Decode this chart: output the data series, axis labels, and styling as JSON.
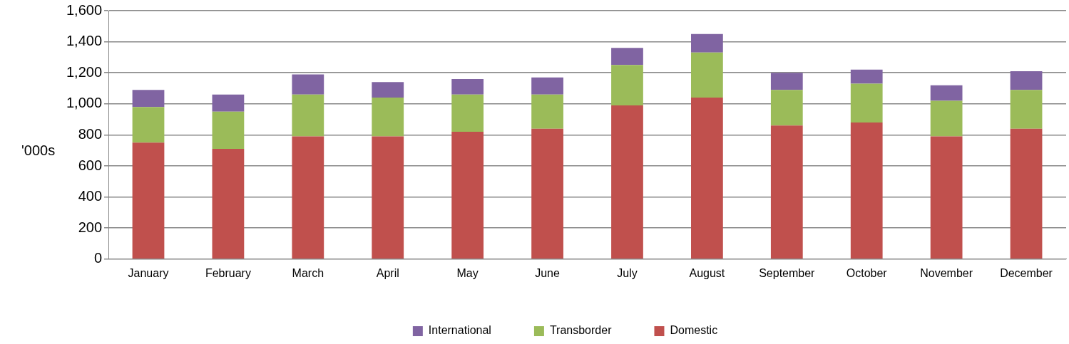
{
  "chart_data": {
    "type": "bar",
    "stacked": true,
    "ylabel": "'000s",
    "categories": [
      "January",
      "February",
      "March",
      "April",
      "May",
      "June",
      "July",
      "August",
      "September",
      "October",
      "November",
      "December"
    ],
    "series": [
      {
        "name": "Domestic",
        "color": "#c0504d",
        "values": [
          750,
          710,
          790,
          790,
          820,
          840,
          990,
          1040,
          860,
          880,
          790,
          840
        ]
      },
      {
        "name": "Transborder",
        "color": "#9bbb59",
        "values": [
          230,
          240,
          270,
          250,
          240,
          220,
          260,
          290,
          230,
          250,
          230,
          250
        ]
      },
      {
        "name": "International",
        "color": "#8064a2",
        "values": [
          110,
          110,
          130,
          100,
          100,
          110,
          110,
          120,
          110,
          90,
          100,
          120
        ]
      }
    ],
    "ylim": [
      0,
      1600
    ],
    "yticks": [
      0,
      200,
      400,
      600,
      800,
      {
        "value": 1000,
        "label": "1,000"
      },
      {
        "value": 1200,
        "label": "1,200"
      },
      {
        "value": 1400,
        "label": "1,400"
      },
      {
        "value": 1600,
        "label": "1,600"
      }
    ],
    "grid": "y",
    "legend": "bottom"
  }
}
